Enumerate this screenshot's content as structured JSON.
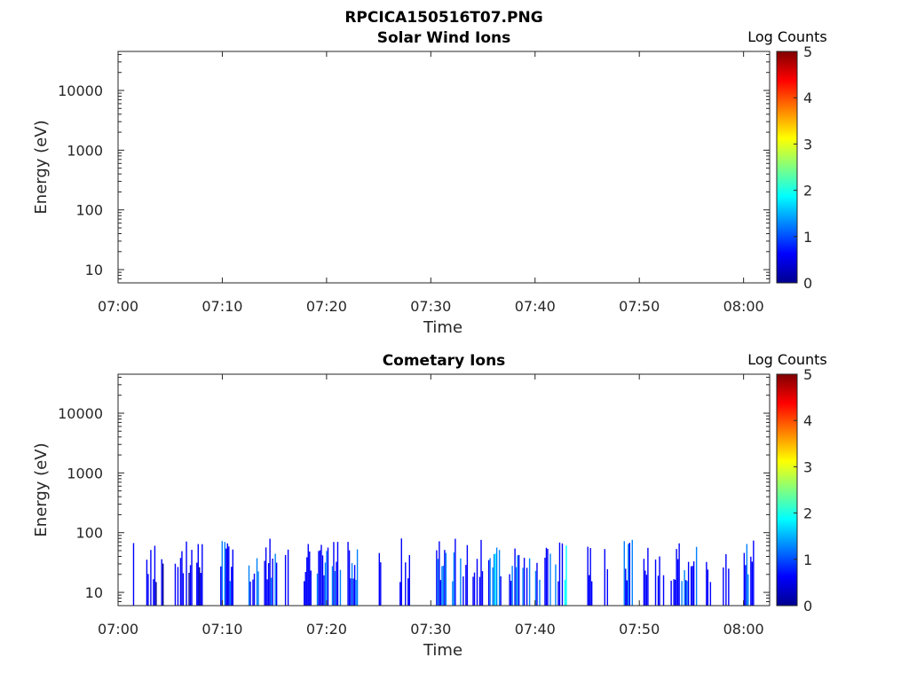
{
  "figure_title": "RPCICA150516T07.PNG",
  "colormap": [
    "#00008f",
    "#0000ff",
    "#0080ff",
    "#00ffff",
    "#80ff80",
    "#ffff00",
    "#ff8000",
    "#ff0000",
    "#800000"
  ],
  "chart_data": [
    {
      "type": "heatmap",
      "title": "Solar Wind Ions",
      "xlabel": "Time",
      "ylabel": "Energy (eV)",
      "x_ticks": [
        "07:00",
        "07:10",
        "07:20",
        "07:30",
        "07:40",
        "07:50",
        "08:00"
      ],
      "y_ticks": [
        "10",
        "100",
        "1000",
        "10000"
      ],
      "y_scale": "log",
      "y_range": [
        6,
        45000
      ],
      "x_range_minutes": [
        0,
        62.5
      ],
      "colorbar": {
        "label": "Log Counts",
        "ticks": [
          "0",
          "1",
          "2",
          "3",
          "4",
          "5"
        ],
        "range": [
          0,
          5
        ]
      },
      "bursts": []
    },
    {
      "type": "heatmap",
      "title": "Cometary Ions",
      "xlabel": "Time",
      "ylabel": "Energy (eV)",
      "x_ticks": [
        "07:00",
        "07:10",
        "07:20",
        "07:30",
        "07:40",
        "07:50",
        "08:00"
      ],
      "y_ticks": [
        "10",
        "100",
        "1000",
        "10000"
      ],
      "y_scale": "log",
      "y_range": [
        6,
        45000
      ],
      "x_range_minutes": [
        0,
        62.5
      ],
      "colorbar": {
        "label": "Log Counts",
        "ticks": [
          "0",
          "1",
          "2",
          "3",
          "4",
          "5"
        ],
        "range": [
          0,
          5
        ]
      },
      "bursts": [
        {
          "t": [
            1.3,
            1.5
          ],
          "level": 0.5
        },
        {
          "t": [
            2.7,
            3.6
          ],
          "level": 0.6
        },
        {
          "t": [
            4.0,
            4.5
          ],
          "level": 0.5
        },
        {
          "t": [
            5.3,
            6.2
          ],
          "level": 0.6
        },
        {
          "t": [
            6.5,
            7.2
          ],
          "level": 0.6
        },
        {
          "t": [
            7.5,
            8.5
          ],
          "level": 0.7
        },
        {
          "t": [
            9.8,
            11.0
          ],
          "level": 1.2
        },
        {
          "t": [
            12.5,
            13.5
          ],
          "level": 1.1
        },
        {
          "t": [
            14.0,
            15.5
          ],
          "level": 0.8
        },
        {
          "t": [
            16.0,
            16.5
          ],
          "level": 0.6
        },
        {
          "t": [
            17.8,
            18.5
          ],
          "level": 0.8
        },
        {
          "t": [
            18.8,
            20.2
          ],
          "level": 1.3
        },
        {
          "t": [
            20.5,
            21.5
          ],
          "level": 0.9
        },
        {
          "t": [
            22.0,
            23.0
          ],
          "level": 1.0
        },
        {
          "t": [
            25.0,
            25.3
          ],
          "level": 0.5
        },
        {
          "t": [
            27.0,
            28.0
          ],
          "level": 0.6
        },
        {
          "t": [
            30.5,
            33.5
          ],
          "level": 1.0
        },
        {
          "t": [
            34.0,
            35.0
          ],
          "level": 0.7
        },
        {
          "t": [
            35.5,
            36.8
          ],
          "level": 1.3
        },
        {
          "t": [
            37.5,
            39.5
          ],
          "level": 1.0
        },
        {
          "t": [
            40.0,
            43.0
          ],
          "level": 1.3
        },
        {
          "t": [
            45.0,
            45.5
          ],
          "level": 0.6
        },
        {
          "t": [
            46.5,
            47.0
          ],
          "level": 0.6
        },
        {
          "t": [
            48.5,
            49.5
          ],
          "level": 1.2
        },
        {
          "t": [
            50.0,
            51.0
          ],
          "level": 0.7
        },
        {
          "t": [
            51.5,
            52.5
          ],
          "level": 0.8
        },
        {
          "t": [
            53.0,
            55.5
          ],
          "level": 1.0
        },
        {
          "t": [
            56.0,
            56.8
          ],
          "level": 0.6
        },
        {
          "t": [
            58.0,
            59.0
          ],
          "level": 0.6
        },
        {
          "t": [
            60.0,
            61.0
          ],
          "level": 0.9
        }
      ]
    }
  ]
}
